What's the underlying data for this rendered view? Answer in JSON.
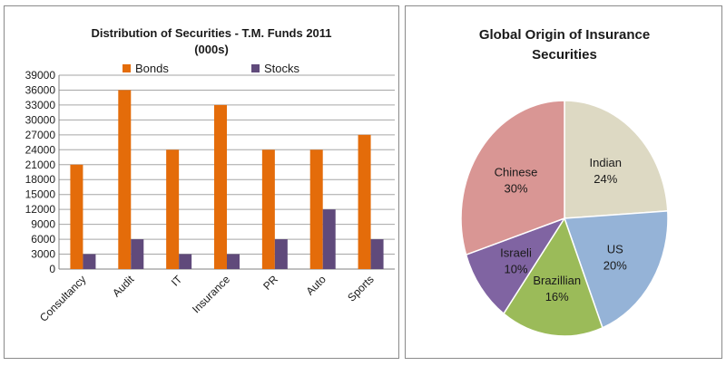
{
  "chart_data": [
    {
      "type": "bar",
      "title": "Distribution of Securities - T.M. Funds 2011",
      "subtitle": "(000s)",
      "xlabel": "",
      "ylabel": "",
      "categories": [
        "Consultancy",
        "Audit",
        "IT",
        "Insurance",
        "PR",
        "Auto",
        "Sports"
      ],
      "series": [
        {
          "name": "Bonds",
          "color": "#e46c0a",
          "values": [
            21000,
            36000,
            24000,
            33000,
            24000,
            24000,
            27000
          ]
        },
        {
          "name": "Stocks",
          "color": "#604a7b",
          "values": [
            3000,
            6000,
            3000,
            3000,
            6000,
            12000,
            6000
          ]
        }
      ],
      "ylim": [
        0,
        39000
      ],
      "yticks": [
        0,
        3000,
        6000,
        9000,
        12000,
        15000,
        18000,
        21000,
        24000,
        27000,
        30000,
        33000,
        36000,
        39000
      ],
      "grid": true,
      "legend": "top"
    },
    {
      "type": "pie",
      "title": "Global Origin of Insurance Securities",
      "slices": [
        {
          "label": "Indian",
          "value": 24,
          "display": "24%",
          "color": "#ddd9c3"
        },
        {
          "label": "US",
          "value": 20,
          "display": "20%",
          "color": "#95b3d7"
        },
        {
          "label": "Brazillian",
          "value": 16,
          "display": "16%",
          "color": "#9bbb59"
        },
        {
          "label": "Israeli",
          "value": 10,
          "display": "10%",
          "color": "#8064a2"
        },
        {
          "label": "Chinese",
          "value": 30,
          "display": "30%",
          "color": "#d99694"
        }
      ],
      "legend": "none"
    }
  ]
}
